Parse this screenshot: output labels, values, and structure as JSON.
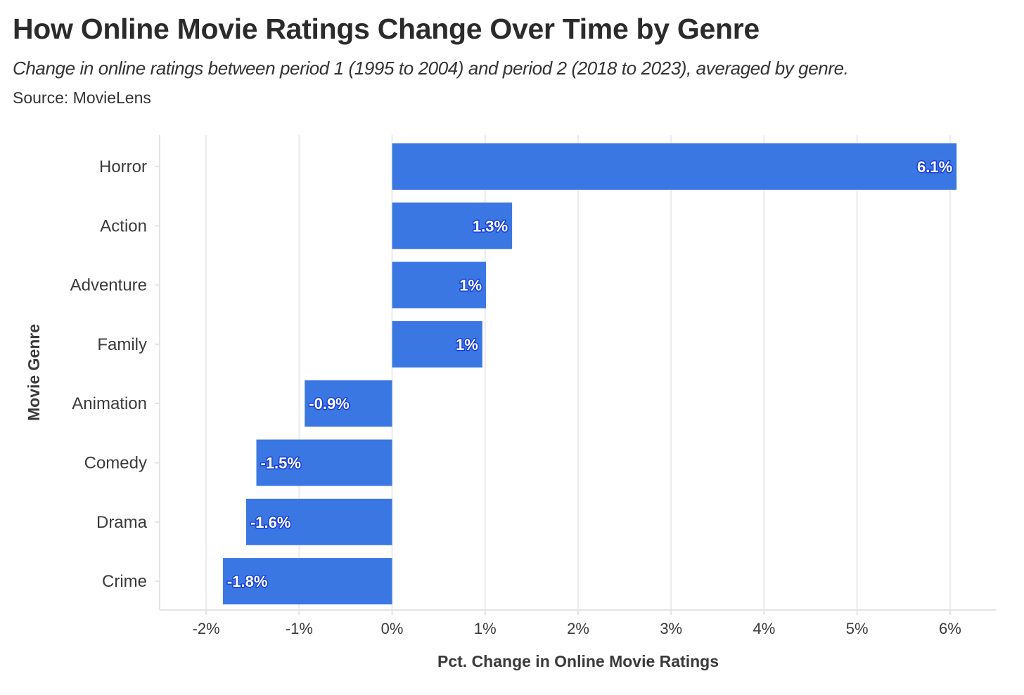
{
  "header": {
    "title": "How Online Movie Ratings Change Over Time by Genre",
    "subtitle": "Change in online ratings between period 1 (1995 to 2004) and period 2 (2018 to 2023), averaged by genre.",
    "source": "Source: MovieLens"
  },
  "colors": {
    "bar": "#3b77e3",
    "label_outline": "#1a3fd6",
    "grid": "#ebebeb",
    "axis_line": "#e3e3e3"
  },
  "chart_data": {
    "type": "bar",
    "orientation": "horizontal",
    "categories": [
      "Horror",
      "Action",
      "Adventure",
      "Family",
      "Animation",
      "Comedy",
      "Drama",
      "Crime"
    ],
    "values": [
      6.07,
      1.29,
      1.01,
      0.97,
      -0.94,
      -1.46,
      -1.57,
      -1.82
    ],
    "data_labels": [
      "6.1%",
      "1.3%",
      "1%",
      "1%",
      "-0.9%",
      "-1.5%",
      "-1.6%",
      "-1.8%"
    ],
    "xlabel": "Pct. Change in Online Movie Ratings",
    "ylabel": "Movie Genre",
    "xlim": [
      -2.5,
      6.5
    ],
    "xticks": [
      -2,
      -1,
      0,
      1,
      2,
      3,
      4,
      5,
      6
    ],
    "xtick_labels": [
      "-2%",
      "-1%",
      "0%",
      "1%",
      "2%",
      "3%",
      "4%",
      "5%",
      "6%"
    ],
    "grid": true,
    "legend": "none"
  }
}
